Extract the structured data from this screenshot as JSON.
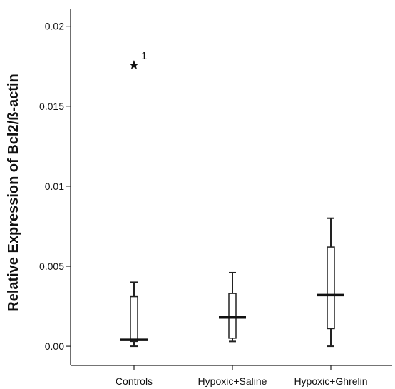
{
  "chart_data": {
    "type": "boxplot",
    "title": "",
    "xlabel": "",
    "ylabel": "Relative Expression of Bcl2/ß-actin",
    "ylim": [
      -0.0012,
      0.0211
    ],
    "yticks": [
      0.0,
      0.005,
      0.01,
      0.015,
      0.02
    ],
    "ytick_labels": [
      "0.00",
      "0.005",
      "0.01",
      "0.015",
      "0.02"
    ],
    "categories": [
      "Controls",
      "Hypoxic+Saline",
      "Hypoxic+Ghrelin"
    ],
    "boxes": [
      {
        "category": "Controls",
        "min": 0.0,
        "q1": 0.0003,
        "median": 0.0004,
        "q3": 0.0031,
        "max": 0.004,
        "outliers": [
          {
            "value": 0.0177,
            "marker": "star",
            "label": "1"
          }
        ]
      },
      {
        "category": "Hypoxic+Saline",
        "min": 0.0003,
        "q1": 0.0005,
        "median": 0.0018,
        "q3": 0.0033,
        "max": 0.0046,
        "outliers": []
      },
      {
        "category": "Hypoxic+Ghrelin",
        "min": 0.0,
        "q1": 0.0011,
        "median": 0.0032,
        "q3": 0.0062,
        "max": 0.008,
        "outliers": []
      }
    ],
    "grid": false,
    "legend": "none"
  }
}
